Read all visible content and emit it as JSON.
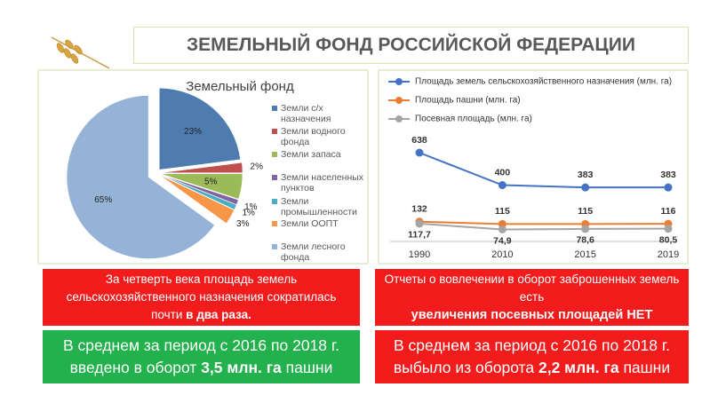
{
  "title": "ЗЕМЕЛЬНЫЙ ФОНД РОССИЙСКОЙ ФЕДЕРАЦИИ",
  "chart_data": [
    {
      "type": "pie",
      "title": "Земельный фонд",
      "categories": [
        "Земли с/х назначения",
        "Земли водного фонда",
        "Земли запаса",
        "Земли населенных пунктов",
        "Земли промышленности",
        "Земли ООПТ",
        "Земли лесного фонда"
      ],
      "values": [
        23,
        2,
        5,
        1,
        1,
        3,
        65
      ],
      "value_labels": [
        "23%",
        "2%",
        "5%",
        "1%",
        "1%",
        "3%",
        "65%"
      ],
      "colors": [
        "#4f7cb0",
        "#c0504d",
        "#9bbb59",
        "#8064a2",
        "#4bacc6",
        "#f79646",
        "#95b3d7"
      ]
    },
    {
      "type": "line",
      "categories": [
        "1990",
        "2010",
        "2015",
        "2019"
      ],
      "series": [
        {
          "name": "Площадь земель сельскохозяйственного назначения (млн. га)",
          "color": "#4472c4",
          "values": [
            638,
            400,
            383,
            383
          ]
        },
        {
          "name": "Площадь пашни (млн. га)",
          "color": "#ed7d31",
          "values": [
            132,
            115,
            115,
            116
          ]
        },
        {
          "name": "Посевная площадь (млн. га)",
          "color": "#a5a5a5",
          "values": [
            117.7,
            74.9,
            78.6,
            80.5
          ],
          "value_labels": [
            "117,7",
            "74,9",
            "78,6",
            "80,5"
          ]
        }
      ]
    }
  ],
  "panels": [
    {
      "parts": [
        "За четверть века площадь земель сельскохозяйственного назначения сократилась почти",
        "в два раза."
      ]
    },
    {
      "parts": [
        "В среднем за период с 2016 по 2018 г. введено в оборот",
        "3,5 млн. га",
        "пашни"
      ]
    },
    {
      "parts": [
        "Отчеты о вовлечении в оборот заброшенных земель есть",
        "увеличения посевных площадей НЕТ"
      ]
    },
    {
      "parts": [
        "В среднем за период с 2016 по 2018 г. выбыло из оборота",
        "2,2 млн. га",
        "пашни"
      ]
    }
  ]
}
